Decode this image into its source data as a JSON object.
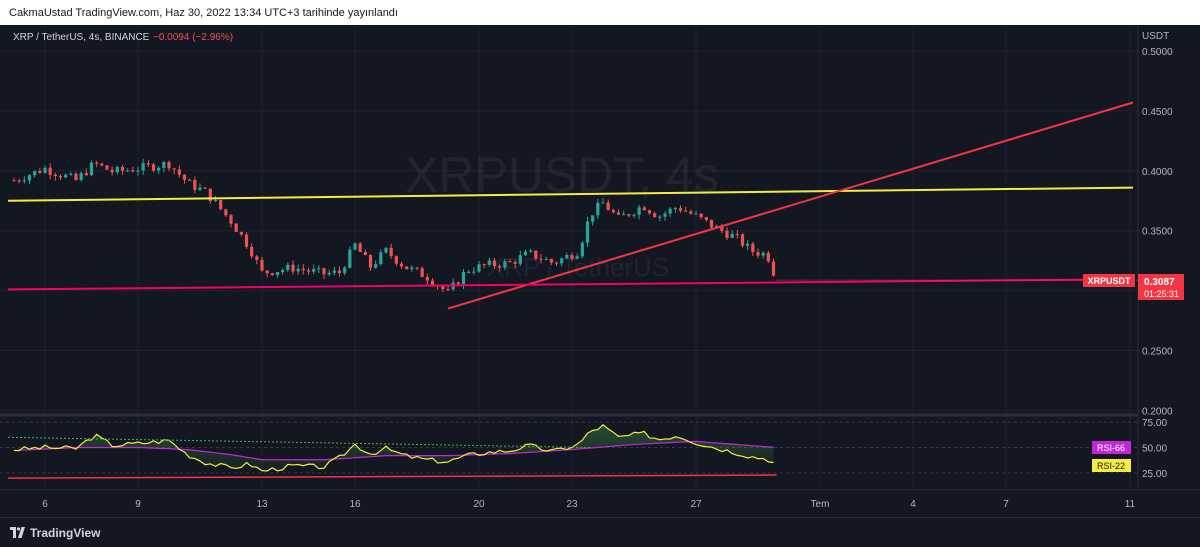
{
  "header": {
    "published": "CakmaUstad TradingView.com, Haz 30, 2022 13:34 UTC+3 tarihinde yayınlandı"
  },
  "legend": {
    "symbol": "XRP / TetherUS, 4s, BINANCE",
    "change": "−0.0094 (−2.96%)"
  },
  "watermark": {
    "ticker": "XRPUSDT, 4s",
    "name": "XRP / TetherUS"
  },
  "footer": {
    "brand": "TradingView"
  },
  "colors": {
    "background": "#131722",
    "bull": "#26a69a",
    "bear": "#ef5350",
    "yellow_line": "#f5ec42",
    "red_line": "#f23645",
    "support_line": "#f50068",
    "rsi": "#f5ec42",
    "rsi_ma": "#c228d8"
  },
  "chart_data": [
    {
      "type": "candlestick",
      "title": "XRP / TetherUS, 4s, BINANCE",
      "axis_unit": "USDT",
      "x_ticks": [
        "6",
        "9",
        "13",
        "16",
        "20",
        "23",
        "27",
        "Tem",
        "4",
        "7",
        "11"
      ],
      "y_ticks": [
        "0.5000",
        "0.4500",
        "0.4000",
        "0.3500",
        "0.2500",
        "0.2000"
      ],
      "ylim": [
        0.2,
        0.5
      ],
      "price_label": {
        "symbol": "XRPUSDT",
        "value": "0.3087",
        "countdown": "01:25:31"
      },
      "close_path": [
        [
          5,
          0.392
        ],
        [
          6,
          0.402
        ],
        [
          7,
          0.392
        ],
        [
          7.6,
          0.406
        ],
        [
          8.2,
          0.399
        ],
        [
          9,
          0.402
        ],
        [
          10,
          0.406
        ],
        [
          10.6,
          0.39
        ],
        [
          11.2,
          0.382
        ],
        [
          12,
          0.358
        ],
        [
          12.6,
          0.336
        ],
        [
          13,
          0.315
        ],
        [
          14,
          0.319
        ],
        [
          15,
          0.314
        ],
        [
          15.5,
          0.315
        ],
        [
          16,
          0.338
        ],
        [
          16.5,
          0.32
        ],
        [
          17,
          0.333
        ],
        [
          17.6,
          0.32
        ],
        [
          18.3,
          0.312
        ],
        [
          19,
          0.298
        ],
        [
          19.6,
          0.317
        ],
        [
          20.2,
          0.321
        ],
        [
          21,
          0.323
        ],
        [
          21.6,
          0.331
        ],
        [
          22.4,
          0.323
        ],
        [
          23.2,
          0.333
        ],
        [
          23.6,
          0.364
        ],
        [
          24,
          0.373
        ],
        [
          24.5,
          0.36
        ],
        [
          25.3,
          0.371
        ],
        [
          25.8,
          0.362
        ],
        [
          26.4,
          0.37
        ],
        [
          27,
          0.362
        ],
        [
          27.6,
          0.353
        ],
        [
          28.3,
          0.344
        ],
        [
          28.8,
          0.333
        ],
        [
          29.3,
          0.33
        ],
        [
          29.6,
          0.3087
        ]
      ],
      "trend_lines": [
        {
          "name": "resistance",
          "color": "yellow",
          "from": [
            5,
            0.375
          ],
          "to": [
            12,
            0.386
          ]
        },
        {
          "name": "rising",
          "color": "red",
          "from": [
            19,
            0.285
          ],
          "to": [
            12,
            0.457
          ]
        },
        {
          "name": "support",
          "color": "magenta",
          "from": [
            5,
            0.301
          ],
          "to": [
            12,
            0.3095
          ]
        }
      ]
    },
    {
      "type": "line",
      "title": "RSI",
      "y_ticks": [
        "75.00",
        "50.00",
        "25.00"
      ],
      "ylim": [
        15,
        85
      ],
      "series": [
        {
          "name": "RSI",
          "values_at": [
            [
              5,
              48
            ],
            [
              6,
              50
            ],
            [
              7,
              49
            ],
            [
              7.6,
              62
            ],
            [
              8.2,
              52
            ],
            [
              9,
              54
            ],
            [
              10,
              57
            ],
            [
              10.6,
              43
            ],
            [
              11.2,
              35
            ],
            [
              12,
              30
            ],
            [
              12.6,
              34
            ],
            [
              13,
              27
            ],
            [
              14,
              32
            ],
            [
              15,
              31
            ],
            [
              15.5,
              40
            ],
            [
              16,
              53
            ],
            [
              16.5,
              44
            ],
            [
              17,
              49
            ],
            [
              17.6,
              42
            ],
            [
              18.3,
              38
            ],
            [
              19,
              36
            ],
            [
              19.6,
              42
            ],
            [
              20.2,
              45
            ],
            [
              21,
              47
            ],
            [
              21.6,
              52
            ],
            [
              22.4,
              46
            ],
            [
              23.2,
              53
            ],
            [
              23.6,
              66
            ],
            [
              24,
              71
            ],
            [
              24.5,
              60
            ],
            [
              25.3,
              64
            ],
            [
              25.8,
              58
            ],
            [
              26.4,
              62
            ],
            [
              27,
              55
            ],
            [
              27.6,
              50
            ],
            [
              28.3,
              45
            ],
            [
              28.8,
              41
            ],
            [
              29.3,
              39
            ],
            [
              29.6,
              33
            ]
          ],
          "value_label": "RSI-22"
        },
        {
          "name": "RSI MA",
          "values_at": [
            [
              5,
              47
            ],
            [
              7,
              50
            ],
            [
              9,
              50
            ],
            [
              10.6,
              48
            ],
            [
              12,
              43
            ],
            [
              13,
              38
            ],
            [
              15,
              38
            ],
            [
              17,
              42
            ],
            [
              19,
              42
            ],
            [
              21,
              44
            ],
            [
              23,
              48
            ],
            [
              25,
              53
            ],
            [
              27,
              56
            ],
            [
              29.6,
              50
            ]
          ],
          "value_label": "RSI-66"
        }
      ]
    }
  ]
}
